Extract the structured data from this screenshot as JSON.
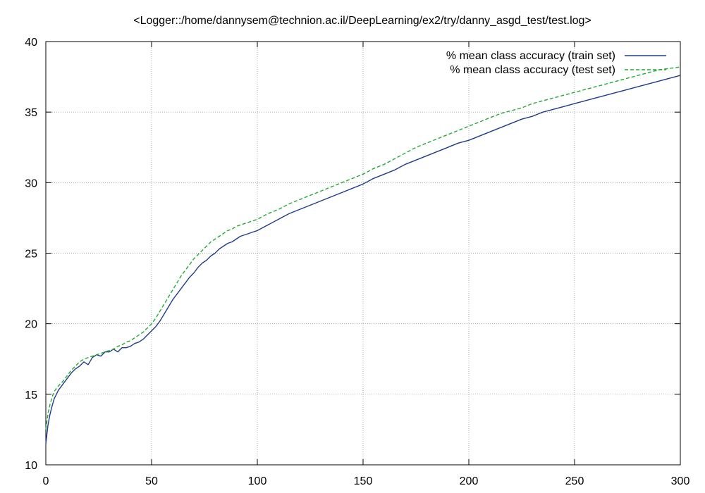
{
  "chart_data": {
    "type": "line",
    "title": "<Logger::/home/dannysem@technion.ac.il/DeepLearning/ex2/try/danny_asgd_test/test.log>",
    "xlabel": "",
    "ylabel": "",
    "xlim": [
      0,
      300
    ],
    "ylim": [
      10,
      40
    ],
    "xticks": [
      0,
      50,
      100,
      150,
      200,
      250,
      300
    ],
    "yticks": [
      10,
      15,
      20,
      25,
      30,
      35,
      40
    ],
    "grid": true,
    "legend_position": "top-right",
    "series": [
      {
        "name": "% mean class accuracy (train set)",
        "color": "#1f3d8c",
        "style": "solid",
        "x": [
          0,
          1,
          2,
          3,
          4,
          5,
          6,
          8,
          10,
          12,
          14,
          16,
          18,
          20,
          22,
          24,
          26,
          28,
          30,
          32,
          34,
          36,
          38,
          40,
          42,
          44,
          46,
          48,
          50,
          52,
          54,
          56,
          58,
          60,
          62,
          64,
          66,
          68,
          70,
          72,
          74,
          76,
          78,
          80,
          82,
          84,
          86,
          88,
          90,
          92,
          94,
          96,
          98,
          100,
          105,
          110,
          115,
          120,
          125,
          130,
          135,
          140,
          145,
          150,
          155,
          160,
          165,
          170,
          175,
          180,
          185,
          190,
          195,
          200,
          205,
          210,
          215,
          220,
          225,
          230,
          235,
          240,
          245,
          250,
          255,
          260,
          265,
          270,
          275,
          280,
          285,
          290,
          295,
          300
        ],
        "y": [
          11.5,
          12.8,
          13.6,
          14.2,
          14.7,
          15.0,
          15.3,
          15.7,
          16.1,
          16.5,
          16.8,
          17.0,
          17.3,
          17.1,
          17.6,
          17.8,
          17.7,
          18.0,
          18.0,
          18.2,
          18.0,
          18.3,
          18.3,
          18.4,
          18.6,
          18.7,
          18.9,
          19.2,
          19.5,
          19.8,
          20.2,
          20.7,
          21.2,
          21.7,
          22.1,
          22.5,
          22.9,
          23.3,
          23.6,
          24.0,
          24.3,
          24.5,
          24.8,
          25.0,
          25.3,
          25.5,
          25.7,
          25.8,
          26.0,
          26.2,
          26.3,
          26.4,
          26.5,
          26.6,
          27.0,
          27.4,
          27.8,
          28.1,
          28.4,
          28.7,
          29.0,
          29.3,
          29.6,
          29.9,
          30.3,
          30.6,
          30.9,
          31.3,
          31.6,
          31.9,
          32.2,
          32.5,
          32.8,
          33.0,
          33.3,
          33.6,
          33.9,
          34.2,
          34.5,
          34.7,
          35.0,
          35.2,
          35.4,
          35.6,
          35.8,
          36.0,
          36.2,
          36.4,
          36.6,
          36.8,
          37.0,
          37.2,
          37.4,
          37.6
        ]
      },
      {
        "name": "% mean class accuracy (test set)",
        "color": "#22aa33",
        "style": "dashed",
        "x": [
          0,
          1,
          2,
          3,
          4,
          5,
          6,
          8,
          10,
          12,
          14,
          16,
          18,
          20,
          22,
          24,
          26,
          28,
          30,
          32,
          34,
          36,
          38,
          40,
          42,
          44,
          46,
          48,
          50,
          52,
          54,
          56,
          58,
          60,
          62,
          64,
          66,
          68,
          70,
          72,
          74,
          76,
          78,
          80,
          82,
          84,
          86,
          88,
          90,
          92,
          94,
          96,
          98,
          100,
          105,
          110,
          115,
          120,
          125,
          130,
          135,
          140,
          145,
          150,
          155,
          160,
          165,
          170,
          175,
          180,
          185,
          190,
          195,
          200,
          205,
          210,
          215,
          220,
          225,
          230,
          235,
          240,
          245,
          250,
          255,
          260,
          265,
          270,
          275,
          280,
          285,
          290,
          295,
          300
        ],
        "y": [
          12.5,
          13.6,
          14.3,
          14.8,
          15.2,
          15.4,
          15.6,
          15.9,
          16.3,
          16.7,
          17.0,
          17.3,
          17.5,
          17.6,
          17.7,
          17.8,
          17.9,
          18.0,
          18.1,
          18.2,
          18.4,
          18.5,
          18.7,
          18.8,
          19.0,
          19.2,
          19.4,
          19.7,
          20.0,
          20.4,
          20.9,
          21.4,
          21.9,
          22.4,
          22.9,
          23.4,
          23.8,
          24.2,
          24.6,
          24.9,
          25.2,
          25.5,
          25.8,
          26.0,
          26.2,
          26.4,
          26.6,
          26.7,
          26.9,
          27.0,
          27.1,
          27.2,
          27.3,
          27.4,
          27.8,
          28.1,
          28.5,
          28.8,
          29.1,
          29.4,
          29.7,
          30.0,
          30.3,
          30.6,
          31.0,
          31.3,
          31.7,
          32.1,
          32.5,
          32.8,
          33.1,
          33.4,
          33.7,
          34.0,
          34.3,
          34.6,
          34.9,
          35.1,
          35.3,
          35.6,
          35.8,
          36.0,
          36.2,
          36.4,
          36.6,
          36.8,
          37.0,
          37.2,
          37.4,
          37.6,
          37.8,
          38.0,
          38.1,
          38.2
        ]
      }
    ]
  }
}
